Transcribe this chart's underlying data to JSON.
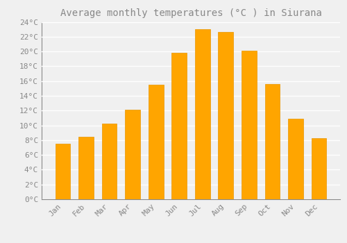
{
  "title": "Average monthly temperatures (°C ) in Siurana",
  "months": [
    "Jan",
    "Feb",
    "Mar",
    "Apr",
    "May",
    "Jun",
    "Jul",
    "Aug",
    "Sep",
    "Oct",
    "Nov",
    "Dec"
  ],
  "values": [
    7.5,
    8.5,
    10.2,
    12.1,
    15.5,
    19.8,
    23.0,
    22.6,
    20.1,
    15.6,
    10.9,
    8.3
  ],
  "bar_color": "#FFA500",
  "bar_edge_color": "#E89500",
  "background_color": "#F0F0F0",
  "grid_color": "#FFFFFF",
  "text_color": "#888888",
  "ylim": [
    0,
    24
  ],
  "ytick_step": 2,
  "title_fontsize": 10,
  "tick_fontsize": 8,
  "font_family": "monospace"
}
